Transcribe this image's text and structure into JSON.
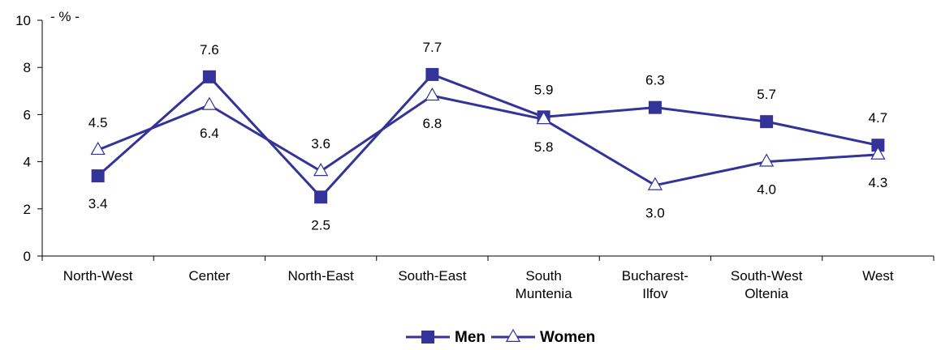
{
  "chart_data": {
    "type": "line",
    "title": "",
    "unit_label": "- % -",
    "xlabel": "",
    "ylabel": "",
    "ylim": [
      0,
      10
    ],
    "yticks": [
      "0",
      "2",
      "4",
      "6",
      "8",
      "10"
    ],
    "categories": [
      [
        "North-West"
      ],
      [
        "Center"
      ],
      [
        "North-East"
      ],
      [
        "South-East"
      ],
      [
        "South",
        "Muntenia"
      ],
      [
        "Bucharest-",
        "Ilfov"
      ],
      [
        "South-West",
        "Oltenia"
      ],
      [
        "West"
      ]
    ],
    "series": [
      {
        "name": "Men",
        "marker": "square",
        "values": [
          3.4,
          7.6,
          2.5,
          7.7,
          5.9,
          6.3,
          5.7,
          4.7
        ],
        "labels": [
          "3.4",
          "7.6",
          "2.5",
          "7.7",
          "5.9",
          "6.3",
          "5.7",
          "4.7"
        ],
        "label_side": [
          "below",
          "above",
          "below",
          "above",
          "above",
          "above",
          "above",
          "above"
        ]
      },
      {
        "name": "Women",
        "marker": "triangle",
        "values": [
          4.5,
          6.4,
          3.6,
          6.8,
          5.8,
          3.0,
          4.0,
          4.3
        ],
        "labels": [
          "4.5",
          "6.4",
          "3.6",
          "6.8",
          "5.8",
          "3.0",
          "4.0",
          "4.3"
        ],
        "label_side": [
          "above",
          "below",
          "above",
          "below",
          "below",
          "below",
          "below",
          "below"
        ]
      }
    ],
    "grid": false,
    "legend_position": "bottom-center",
    "colors": {
      "line": "#333399",
      "axis": "#000000",
      "triangle_fill": "#ffffff"
    }
  }
}
